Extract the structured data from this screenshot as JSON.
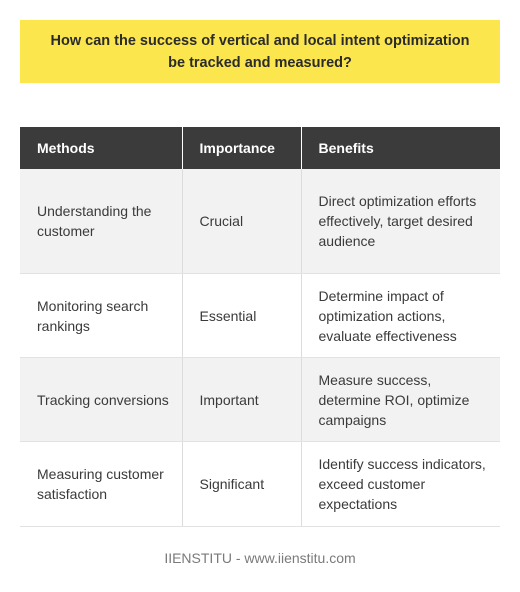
{
  "title": "How can the success of vertical and local intent optimization be tracked and measured?",
  "table": {
    "headers": [
      "Methods",
      "Importance",
      "Benefits"
    ],
    "rows": [
      {
        "method": "Understanding the customer",
        "importance": "Crucial",
        "benefits": "Direct optimization efforts effectively, target desired audience"
      },
      {
        "method": "Monitoring search rankings",
        "importance": "Essential",
        "benefits": "Determine impact of optimization actions, evaluate effectiveness"
      },
      {
        "method": "Tracking conversions",
        "importance": "Important",
        "benefits": "Measure success, determine ROI, optimize campaigns"
      },
      {
        "method": "Measuring customer satisfaction",
        "importance": "Significant",
        "benefits": "Identify success indicators, exceed customer expectations"
      }
    ]
  },
  "footer": "IIENSTITU - www.iienstitu.com",
  "colors": {
    "title_background": "#fbe74d",
    "header_background": "#3b3b3b",
    "stripe_background": "#f2f2f2"
  }
}
